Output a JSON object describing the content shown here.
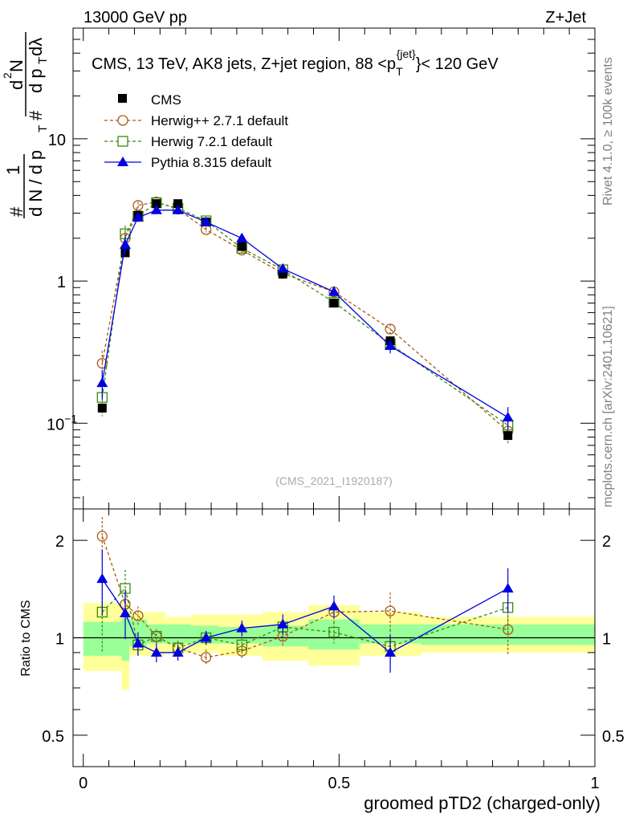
{
  "header": {
    "left": "13000 GeV pp",
    "right": "Z+Jet"
  },
  "side": {
    "rivet": "Rivet 4.1.0, ≥ 100k events",
    "mcplots": "mcplots.cern.ch [arXiv:2401.10621]"
  },
  "chart_data": {
    "type": "line",
    "title": "CMS, 13 TeV, AK8 jets, Z+jet region, 88 <p_T^{jet}< 120 GeV",
    "title_parts": {
      "prefix": "CMS, 13 TeV, AK8 jets, Z+jet region, 88 <p",
      "sub": "T",
      "sup": "{jet}",
      "suffix": "}< 120 GeV"
    },
    "analysis_tag": "(CMS_2021_I1920187)",
    "xlabel": "groomed pTD2 (charged-only)",
    "ylabel_top": {
      "one": "1",
      "lower": "d N / d p",
      "lower_sub": "T",
      "hash1": "#",
      "hash2": "#",
      "upper": "d",
      "upper_sup": "2",
      "upper_N": "N",
      "d2": "d p",
      "d2_sub": "T",
      "dl": "dλ"
    },
    "ylabel_ratio": "Ratio to CMS",
    "xlim": [
      -0.02,
      1.0
    ],
    "ylim": [
      0.025,
      60
    ],
    "ratio_ylim": [
      0.4,
      2.5
    ],
    "x_ticks": [
      {
        "v": 0,
        "label": "0"
      },
      {
        "v": 0.5,
        "label": "0.5"
      },
      {
        "v": 1,
        "label": "1"
      }
    ],
    "y_ticks": [
      {
        "v": 0.1,
        "label": "10",
        "sup": "−1"
      },
      {
        "v": 1,
        "label": "1",
        "sup": ""
      },
      {
        "v": 10,
        "label": "10",
        "sup": ""
      }
    ],
    "ratio_ticks": [
      {
        "v": 0.5,
        "label": "0.5"
      },
      {
        "v": 1,
        "label": "1"
      },
      {
        "v": 2,
        "label": "2"
      }
    ],
    "bins": [
      0.0,
      0.075,
      0.09,
      0.125,
      0.16,
      0.21,
      0.265,
      0.35,
      0.44,
      0.54,
      0.66,
      1.0
    ],
    "x": [
      0.037,
      0.082,
      0.107,
      0.143,
      0.185,
      0.24,
      0.31,
      0.39,
      0.49,
      0.6,
      0.83
    ],
    "data_band_inner": [
      1.12,
      1.15,
      1.14,
      1.1,
      1.1,
      1.09,
      1.08,
      1.09,
      1.14,
      1.1,
      1.1
    ],
    "data_band_outer": [
      1.28,
      1.28,
      1.2,
      1.2,
      1.16,
      1.18,
      1.18,
      1.2,
      1.26,
      1.2,
      1.16
    ],
    "data_band_inner_lo": [
      0.88,
      0.85,
      0.94,
      0.96,
      0.96,
      0.96,
      0.96,
      0.94,
      0.92,
      0.96,
      0.95
    ],
    "data_band_outer_lo": [
      0.79,
      0.69,
      0.88,
      0.88,
      0.9,
      0.9,
      0.88,
      0.85,
      0.82,
      0.88,
      0.9
    ],
    "legend": [
      {
        "name": "CMS",
        "color": "#000000"
      },
      {
        "name": "Herwig++ 2.7.1 default",
        "color": "#a85a14"
      },
      {
        "name": "Herwig 7.2.1 default",
        "color": "#3a8a14"
      },
      {
        "name": "Pythia 8.315 default",
        "color": "#0000e0"
      }
    ],
    "series": [
      {
        "name": "CMS",
        "marker": "square-filled",
        "color": "#000000",
        "values": [
          0.128,
          1.58,
          2.9,
          3.5,
          3.5,
          2.6,
          1.75,
          1.12,
          0.7,
          0.38,
          0.082
        ]
      },
      {
        "name": "Herwig++ 2.7.1 default",
        "marker": "circle-open",
        "style": "dashed",
        "color": "#a85a14",
        "values": [
          0.264,
          2.0,
          3.4,
          3.6,
          3.2,
          2.3,
          1.65,
          1.13,
          0.84,
          0.46,
          0.088
        ],
        "err": [
          0.06,
          0.25,
          0.2,
          0.15,
          0.12,
          0.1,
          0.08,
          0.06,
          0.05,
          0.04,
          0.016
        ],
        "ratio": [
          2.06,
          1.27,
          1.17,
          1.01,
          0.93,
          0.87,
          0.91,
          1.01,
          1.2,
          1.21,
          1.06
        ],
        "ratio_err": [
          0.3,
          0.1,
          0.08,
          0.05,
          0.04,
          0.05,
          0.05,
          0.07,
          0.1,
          0.17,
          0.18
        ]
      },
      {
        "name": "Herwig 7.2.1 default",
        "marker": "square-open",
        "style": "dashed",
        "color": "#3a8a14",
        "values": [
          0.152,
          2.15,
          2.85,
          3.55,
          3.25,
          2.65,
          1.7,
          1.2,
          0.71,
          0.36,
          0.097
        ],
        "err": [
          0.04,
          0.3,
          0.2,
          0.15,
          0.12,
          0.1,
          0.08,
          0.06,
          0.05,
          0.04,
          0.02
        ],
        "ratio": [
          1.2,
          1.42,
          0.95,
          1.01,
          0.93,
          1.0,
          0.95,
          1.08,
          1.04,
          0.94,
          1.24
        ],
        "ratio_err": [
          0.3,
          0.2,
          0.06,
          0.05,
          0.05,
          0.05,
          0.05,
          0.06,
          0.08,
          0.12,
          0.2
        ]
      },
      {
        "name": "Pythia 8.315 default",
        "marker": "triangle-filled",
        "style": "solid",
        "color": "#0000e0",
        "values": [
          0.192,
          1.8,
          2.8,
          3.15,
          3.15,
          2.6,
          2.0,
          1.22,
          0.84,
          0.35,
          0.11
        ],
        "err": [
          0.045,
          0.28,
          0.2,
          0.14,
          0.12,
          0.1,
          0.09,
          0.07,
          0.06,
          0.04,
          0.02
        ],
        "ratio": [
          1.52,
          1.19,
          0.96,
          0.9,
          0.9,
          1.0,
          1.07,
          1.1,
          1.25,
          0.9,
          1.42
        ],
        "ratio_err": [
          0.35,
          0.2,
          0.08,
          0.06,
          0.05,
          0.05,
          0.06,
          0.08,
          0.1,
          0.12,
          0.22
        ]
      }
    ]
  }
}
